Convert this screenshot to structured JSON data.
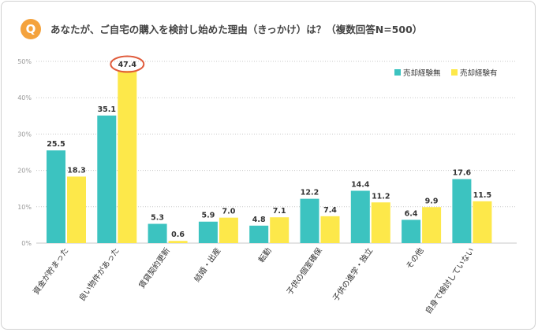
{
  "question": {
    "badge": "Q",
    "title": "あなたが、ご自宅の購入を検討し始めた理由（きっかけ）は？（複数回答N=500）"
  },
  "colors": {
    "series1": "#3cc3c0",
    "series2": "#fde84a",
    "highlight": "#e05a3a",
    "grid": "#c8c8c8",
    "axis_text": "#999999",
    "value_text": "#333333",
    "category_text": "#333333"
  },
  "chart_data": {
    "type": "bar",
    "title": "",
    "xlabel": "",
    "ylabel": "",
    "ylim": [
      0,
      50
    ],
    "yticks": [
      0,
      10,
      20,
      30,
      40,
      50
    ],
    "ytick_labels": [
      "0%",
      "10%",
      "20%",
      "30%",
      "40%",
      "50%"
    ],
    "grid": true,
    "legend_position": "top-right",
    "categories": [
      "資金が貯まった",
      "良い物件があった",
      "賃貸契約更新",
      "結婚・出産",
      "転勤",
      "子供の個室確保",
      "子供の進学・独立",
      "その他",
      "自身で検討していない"
    ],
    "series": [
      {
        "name": "売却経験無",
        "values": [
          25.5,
          35.1,
          5.3,
          5.9,
          4.8,
          12.2,
          14.4,
          6.4,
          17.6
        ]
      },
      {
        "name": "売却経験有",
        "values": [
          18.3,
          47.4,
          0.6,
          7.0,
          7.1,
          7.4,
          11.2,
          9.9,
          11.5
        ]
      }
    ],
    "value_labels": [
      [
        "25.5",
        "35.1",
        "5.3",
        "5.9",
        "4.8",
        "12.2",
        "14.4",
        "6.4",
        "17.6"
      ],
      [
        "18.3",
        "47.4",
        "0.6",
        "7.0",
        "7.1",
        "7.4",
        "11.2",
        "9.9",
        "11.5"
      ]
    ],
    "highlight": {
      "series": 1,
      "category": 1
    }
  }
}
